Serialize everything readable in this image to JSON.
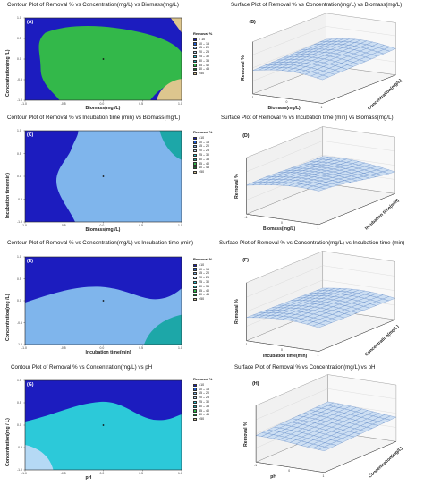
{
  "colors": {
    "band_lt10": "#1c1cbf",
    "band_10_15": "#1f5fd6",
    "band_15_20": "#7fb5ec",
    "band_20_25": "#b5d9f5",
    "band_25_30": "#2cc9d9",
    "band_30_35": "#1da7a8",
    "band_35_40": "#33b84a",
    "band_40_45": "#0f7a2c",
    "band_gt50": "#ddc68e",
    "surface_fill": "#cddff3",
    "surface_line": "#5a84c4",
    "axis": "#333333"
  },
  "legend": {
    "title": "Removal %",
    "items": [
      "<10",
      "10 – 15",
      "15 – 20",
      "20 – 25",
      "25 – 30",
      "30 – 35",
      "35 – 40",
      "40 – 45",
      ">50"
    ]
  },
  "legend_a": {
    "title": "Removal %",
    "items": [
      "< 10",
      "10 – 15",
      "15 – 20",
      "20 – 25",
      "25 – 30",
      "30 – 35",
      "35 – 40",
      "40 – 45",
      ">50"
    ]
  },
  "chart_data": [
    {
      "id": "A",
      "type": "contour",
      "title": "Contour Plot of Removal % vs Concentration(mg/L) vs Biomass(mg/L)",
      "panel_label": "(A)",
      "xlabel": "Biomass(mg /L)",
      "ylabel": "Concentration(mg /L)",
      "xticks": [
        "-1.0",
        "-0.5",
        "0.0",
        "0.5",
        "1.0"
      ],
      "yticks": [
        "1.0",
        "0.5",
        "0.0",
        "-0.5",
        "-1.0"
      ],
      "xlim": [
        -1,
        1
      ],
      "ylim": [
        -1,
        1
      ],
      "legend": "legend_a",
      "bands": [
        "band_lt10",
        "band_35_40",
        "band_gt50"
      ]
    },
    {
      "id": "B",
      "type": "surface",
      "title": "Surface Plot of Removal % vs Concentration(mg/L) vs Biomass(mg/L)",
      "panel_label": "(B)",
      "xlabel": "Biomass(mg/L)",
      "ylabel": "Concentration(mg/L)",
      "zlabel": "Removal %",
      "xticks": [
        "-1",
        "0",
        "1"
      ]
    },
    {
      "id": "C",
      "type": "contour",
      "title": "Contour Plot of Removal % vs Incubation time (min) vs Biomass(mg/L)",
      "panel_label": "(C)",
      "xlabel": "Biomass(mg /L)",
      "ylabel": "Incubation time(min)",
      "xticks": [
        "-1.0",
        "-0.5",
        "0.0",
        "0.5",
        "1.0"
      ],
      "yticks": [
        "1.0",
        "0.5",
        "0.0",
        "-0.5",
        "-1.0"
      ],
      "xlim": [
        -1,
        1
      ],
      "ylim": [
        -1,
        1
      ],
      "legend": "legend",
      "bands": [
        "band_lt10",
        "band_15_20",
        "band_30_35"
      ]
    },
    {
      "id": "D",
      "type": "surface",
      "title": "Surface Plot of Removal % vs Incubation time (min) vs Biomass(mg/L)",
      "panel_label": "(D)",
      "xlabel": "Biomass(mg/L)",
      "ylabel": "Incubation time(min)",
      "zlabel": "Removal %",
      "xticks": [
        "-1",
        "0",
        "1"
      ]
    },
    {
      "id": "E",
      "type": "contour",
      "title": "Contour Plot of Removal % vs Concentration(mg/L) vs Incubation time (min)",
      "panel_label": "(E)",
      "xlabel": "Incubation time(min)",
      "ylabel": "Concentration(mg /L)",
      "xticks": [
        "-1.0",
        "-0.5",
        "0.0",
        "0.5",
        "1.0"
      ],
      "yticks": [
        "1.0",
        "0.5",
        "0.0",
        "-0.5",
        "-1.0"
      ],
      "xlim": [
        -1,
        1
      ],
      "ylim": [
        -1,
        1
      ],
      "legend": "legend",
      "bands": [
        "band_lt10",
        "band_15_20",
        "band_30_35"
      ]
    },
    {
      "id": "F",
      "type": "surface",
      "title": "Surface Plot of Removal % vs Concentration(mg/L) vs Incubation time (min)",
      "panel_label": "(F)",
      "xlabel": "Incubation time(min)",
      "ylabel": "Concentration(mg/L)",
      "zlabel": "Removal %",
      "xticks": [
        "-1",
        "0",
        "1"
      ]
    },
    {
      "id": "G",
      "type": "contour",
      "title": "Contour Plot of Removal % vs Concentration(mg/L) vs pH",
      "panel_label": "(G)",
      "xlabel": "pH",
      "ylabel": "Concentration(mg / L)",
      "xticks": [
        "-1.0",
        "-0.5",
        "0.0",
        "0.5",
        "1.0"
      ],
      "yticks": [
        "1.0",
        "0.5",
        "0.0",
        "-0.5",
        "-1.0"
      ],
      "xlim": [
        -1,
        1
      ],
      "ylim": [
        -1,
        1
      ],
      "legend": "legend",
      "bands": [
        "band_lt10",
        "band_25_30",
        "band_20_25"
      ]
    },
    {
      "id": "H",
      "type": "surface",
      "title": "Surface Plot of Removal % vs Concentration(mg/L) vs pH",
      "panel_label": "(H)",
      "xlabel": "pH",
      "ylabel": "Concentration(mg/L)",
      "zlabel": "Removal %",
      "xticks": [
        "-1",
        "0",
        "1"
      ]
    }
  ]
}
